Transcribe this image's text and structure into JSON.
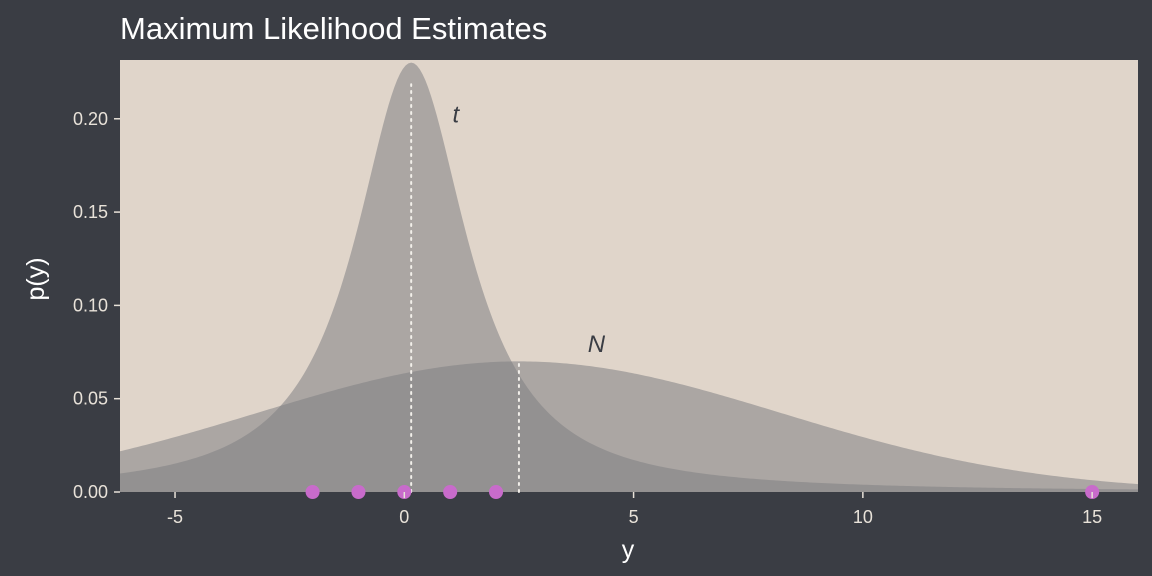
{
  "chart_data": {
    "type": "area",
    "title": "Maximum Likelihood Estimates",
    "xlabel": "y",
    "ylabel": "p(y)",
    "xlim": [
      -6.2,
      16.0
    ],
    "ylim": [
      0,
      0.2315
    ],
    "x_ticks": [
      -5,
      0,
      5,
      10,
      15
    ],
    "x_tick_labels": [
      "-5",
      "0",
      "5",
      "10",
      "15"
    ],
    "y_ticks": [
      0.0,
      0.05,
      0.1,
      0.15,
      0.2
    ],
    "y_tick_labels": [
      "0.00",
      "0.05",
      "0.10",
      "0.15",
      "0.20"
    ],
    "grid": false,
    "legend": "none",
    "series": [
      {
        "name": "N",
        "distribution": "normal",
        "mean": 2.5,
        "sd": 5.7,
        "peak_density": 0.07,
        "label_at": [
          4.0,
          0.075
        ]
      },
      {
        "name": "t",
        "distribution": "student-t",
        "location": 0.15,
        "scale": 1.43,
        "df": 1.2,
        "peak_density": 0.221,
        "label_at": [
          1.05,
          0.198
        ]
      }
    ],
    "observed_points": [
      -2,
      -1,
      0,
      1,
      2,
      15
    ],
    "reference_lines": [
      {
        "name": "t location",
        "x": 0.15,
        "y_top": 0.2185
      },
      {
        "name": "N mean",
        "x": 2.5,
        "y_top": 0.0699
      }
    ],
    "colors": {
      "figure_background": "#3a3d44",
      "panel_background": "#e0d5ca",
      "density_fill": "#7f7f84",
      "density_opacity": "0.55",
      "observed_point": "#c86bcb",
      "reference_line": "#f2efea",
      "title_text": "#ffffff",
      "tick_text": "#e8e2d9",
      "curve_label_text": "#3a3d44"
    }
  }
}
